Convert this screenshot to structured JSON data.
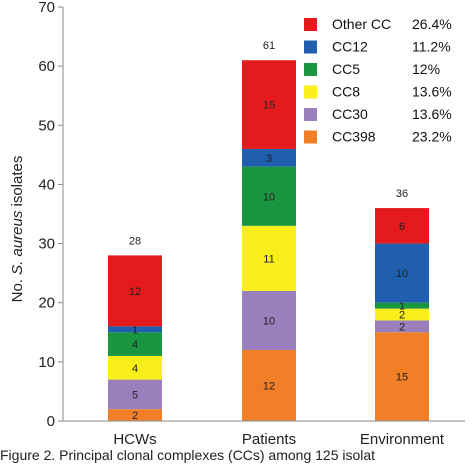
{
  "chart_data": {
    "type": "bar",
    "stacked": true,
    "categories": [
      "HCWs",
      "Patients",
      "Environment"
    ],
    "totals": [
      "28",
      "61",
      "36"
    ],
    "ylabel_prefix": "No. ",
    "ylabel_italic": "S. aureus",
    "ylabel_suffix": " isolates",
    "xlabel": "",
    "ylim": [
      0,
      70
    ],
    "yticks": [
      0,
      10,
      20,
      30,
      40,
      50,
      60,
      70
    ],
    "grid": false,
    "legend_position": "top-right",
    "series": [
      {
        "name": "CC398",
        "percent": "23.2%",
        "color": "#f07f27",
        "values": [
          2,
          12,
          15
        ]
      },
      {
        "name": "CC30",
        "percent": "13.6%",
        "color": "#9a7fbd",
        "values": [
          5,
          10,
          2
        ]
      },
      {
        "name": "CC8",
        "percent": "13.6%",
        "color": "#f7ee1a",
        "values": [
          4,
          11,
          2
        ]
      },
      {
        "name": "CC5",
        "percent": "12%",
        "color": "#1a9641",
        "values": [
          4,
          10,
          1
        ]
      },
      {
        "name": "CC12",
        "percent": "11.2%",
        "color": "#1f5fae",
        "values": [
          1,
          3,
          10
        ]
      },
      {
        "name": "Other CC",
        "percent": "26.4%",
        "color": "#e41a1c",
        "values": [
          12,
          15,
          6
        ]
      }
    ],
    "legend_order": [
      "Other CC",
      "CC12",
      "CC5",
      "CC8",
      "CC30",
      "CC398"
    ]
  },
  "caption": "Figure 2. Principal clonal complexes (CCs) among 125 isolat"
}
